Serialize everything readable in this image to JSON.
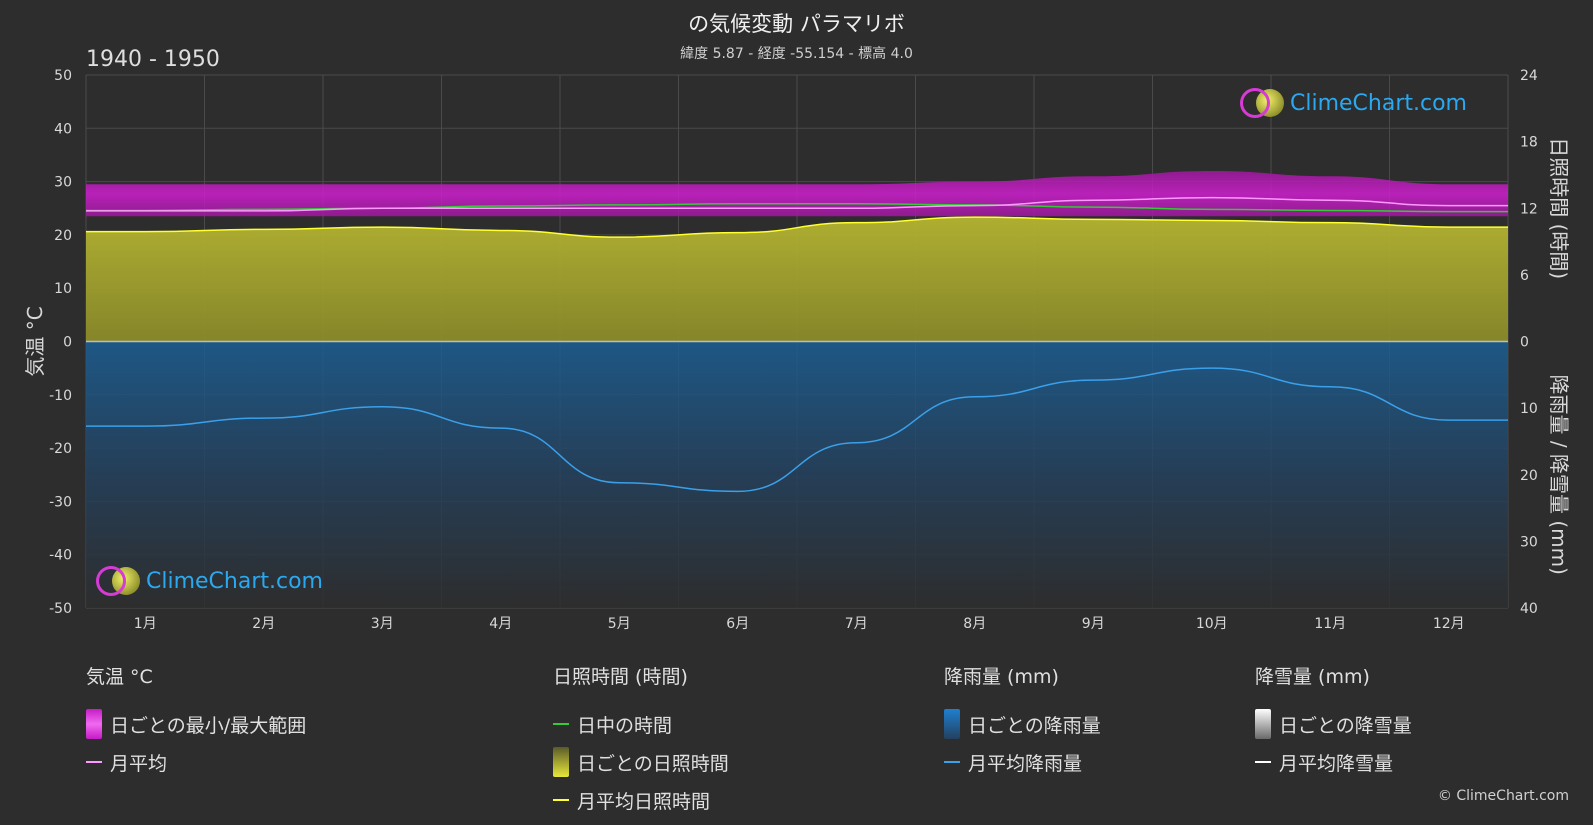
{
  "header": {
    "title": "の気候変動 パラマリボ",
    "subtitle": "緯度 5.87 - 経度 -55.154 - 標高 4.0",
    "period": "1940 - 1950"
  },
  "chart_data": {
    "type": "area",
    "months": [
      "1月",
      "2月",
      "3月",
      "4月",
      "5月",
      "6月",
      "7月",
      "8月",
      "9月",
      "10月",
      "11月",
      "12月"
    ],
    "left_axis": {
      "label": "気温 °C",
      "range": [
        -50,
        50
      ],
      "ticks": [
        "50",
        "40",
        "30",
        "20",
        "10",
        "0",
        "-10",
        "-20",
        "-30",
        "-40",
        "-50"
      ]
    },
    "right_axis_top": {
      "label": "日照時間 (時間)",
      "range": [
        0,
        24
      ],
      "ticks": [
        "24",
        "18",
        "12",
        "6",
        "0"
      ]
    },
    "right_axis_bottom": {
      "label": "降雨量 / 降雪量 (mm)",
      "range": [
        0,
        40
      ],
      "ticks": [
        "10",
        "20",
        "30",
        "40"
      ]
    },
    "temp_daily_range": {
      "min": [
        23.5,
        23.5,
        23.5,
        23.5,
        23.5,
        23.5,
        23.5,
        23.5,
        23.5,
        23.5,
        23.5,
        23.5
      ],
      "max": [
        29.5,
        29.5,
        29.5,
        29.5,
        29.5,
        29.5,
        29.5,
        30,
        31,
        32,
        31,
        29.5
      ]
    },
    "temp_monthly_mean": [
      24.5,
      24.5,
      25,
      25,
      25,
      25,
      25,
      25.5,
      26.5,
      27,
      26.5,
      25.5
    ],
    "daylight_hours": [
      11.8,
      11.9,
      12.0,
      12.2,
      12.3,
      12.4,
      12.4,
      12.3,
      12.1,
      11.9,
      11.8,
      11.7
    ],
    "sunshine_monthly_mean_hours": [
      9.9,
      10.1,
      10.3,
      10.0,
      9.4,
      9.8,
      10.7,
      11.2,
      11.0,
      10.9,
      10.7,
      10.3
    ],
    "rain_monthly_mean_mm": [
      12.7,
      11.5,
      9.8,
      13.0,
      21.2,
      22.5,
      15.2,
      8.3,
      5.8,
      4.0,
      6.8,
      11.8
    ],
    "snow_monthly_mean_mm": [
      0,
      0,
      0,
      0,
      0,
      0,
      0,
      0,
      0,
      0,
      0,
      0
    ]
  },
  "legend": {
    "temp": {
      "title": "気温 °C",
      "range": "日ごとの最小/最大範囲",
      "mean": "月平均"
    },
    "sun": {
      "title": "日照時間 (時間)",
      "daylight": "日中の時間",
      "daily": "日ごとの日照時間",
      "mean": "月平均日照時間"
    },
    "rain": {
      "title": "降雨量 (mm)",
      "daily": "日ごとの降雨量",
      "mean": "月平均降雨量"
    },
    "snow": {
      "title": "降雪量 (mm)",
      "daily": "日ごとの降雪量",
      "mean": "月平均降雪量"
    }
  },
  "brand": {
    "logo_text": "ClimeChart.com",
    "copyright": "© ClimeChart.com"
  },
  "colors": {
    "temp_range": "#d11fd1",
    "temp_mean": "#ff99ff",
    "daylight": "#33cc33",
    "sunshine": "#c8c83a",
    "sunshine_mean": "#ffff33",
    "rain": "#1f6fb0",
    "rain_mean": "#3aa0ea",
    "snow_mean": "#ffffff"
  }
}
